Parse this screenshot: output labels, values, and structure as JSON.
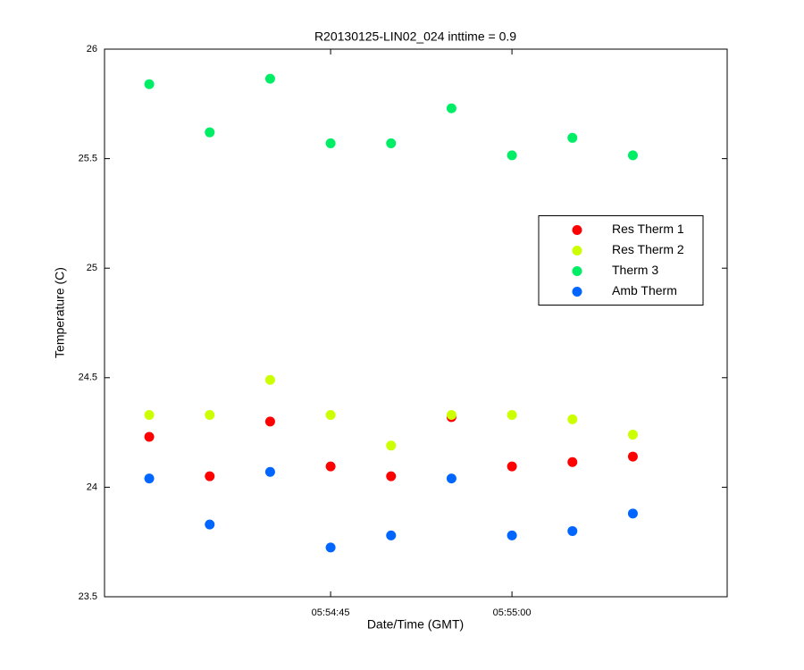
{
  "chart_data": {
    "type": "scatter",
    "title": "R20130125-LIN02_024 inttime = 0.9",
    "x_label": "Date/Time (GMT)",
    "y_label": "Temperature (C)",
    "x": [
      "05:54:30",
      "05:54:35",
      "05:54:40",
      "05:54:45",
      "05:54:50",
      "05:54:55",
      "05:55:00",
      "05:55:05",
      "05:55:10"
    ],
    "series": [
      {
        "name": "Res Therm 1",
        "color": "#ff0000",
        "values": [
          24.23,
          24.05,
          24.3,
          24.095,
          24.05,
          24.32,
          24.095,
          24.115,
          24.14
        ]
      },
      {
        "name": "Res Therm 2",
        "color": "#ccff00",
        "values": [
          24.33,
          24.33,
          24.49,
          24.33,
          24.19,
          24.33,
          24.33,
          24.31,
          24.24
        ]
      },
      {
        "name": "Therm 3",
        "color": "#00ee66",
        "values": [
          25.84,
          25.62,
          25.865,
          25.57,
          25.57,
          25.73,
          25.515,
          25.595,
          25.515
        ]
      },
      {
        "name": "Amb Therm",
        "color": "#0066ff",
        "values": [
          24.04,
          23.83,
          24.07,
          23.725,
          23.78,
          24.04,
          23.78,
          23.8,
          23.88
        ]
      }
    ],
    "xlim": [
      "05:54:26.3",
      "05:55:17.8"
    ],
    "xticks": [
      "05:54:45",
      "05:55:00"
    ],
    "ylim": [
      23.5,
      26
    ],
    "yticks": [
      23.5,
      24,
      24.5,
      25,
      25.5,
      26
    ],
    "grid": false,
    "legend_position": "right"
  }
}
